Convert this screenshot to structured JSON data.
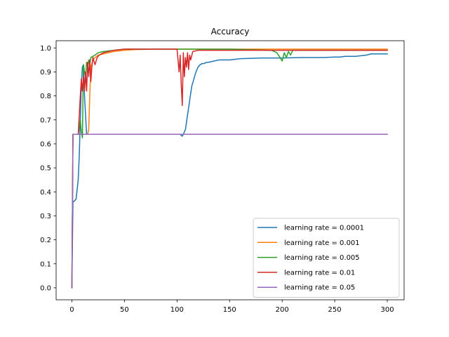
{
  "chart_data": {
    "type": "line",
    "title": "Accuracy",
    "xlabel": "",
    "ylabel": "",
    "xlim": [
      -15,
      316
    ],
    "ylim": [
      -0.05,
      1.03
    ],
    "xticks": [
      0,
      50,
      100,
      150,
      200,
      250,
      300
    ],
    "xtick_labels": [
      "0",
      "50",
      "100",
      "150",
      "200",
      "250",
      "300"
    ],
    "yticks": [
      0.0,
      0.1,
      0.2,
      0.3,
      0.4,
      0.5,
      0.6,
      0.7,
      0.8,
      0.9,
      1.0
    ],
    "ytick_labels": [
      "0.0",
      "0.1",
      "0.2",
      "0.3",
      "0.4",
      "0.5",
      "0.6",
      "0.7",
      "0.8",
      "0.9",
      "1.0"
    ],
    "grid": false,
    "legend_position": "lower-right",
    "series": [
      {
        "name": "learning rate = 0.0001",
        "color": "#1f77b4",
        "x": [
          0,
          1,
          2,
          4,
          6,
          7,
          8,
          9,
          10,
          11,
          12,
          14,
          16,
          18,
          20,
          30,
          50,
          100,
          103,
          104,
          105,
          106,
          108,
          110,
          112,
          114,
          116,
          118,
          120,
          122,
          124,
          126,
          128,
          130,
          135,
          140,
          150,
          160,
          180,
          200,
          220,
          240,
          250,
          255,
          260,
          270,
          280,
          285,
          290,
          300
        ],
        "y": [
          0.0,
          0.36,
          0.36,
          0.37,
          0.45,
          0.55,
          0.7,
          0.85,
          0.92,
          0.93,
          0.8,
          0.64,
          0.64,
          0.64,
          0.64,
          0.64,
          0.64,
          0.64,
          0.64,
          0.635,
          0.632,
          0.64,
          0.66,
          0.72,
          0.78,
          0.84,
          0.87,
          0.9,
          0.92,
          0.93,
          0.935,
          0.935,
          0.94,
          0.94,
          0.945,
          0.95,
          0.95,
          0.955,
          0.958,
          0.958,
          0.96,
          0.96,
          0.962,
          0.962,
          0.965,
          0.965,
          0.97,
          0.975,
          0.975,
          0.975
        ]
      },
      {
        "name": "learning rate = 0.001",
        "color": "#ff7f0e",
        "x": [
          0,
          1,
          2,
          10,
          15,
          16,
          17,
          18,
          20,
          22,
          25,
          30,
          35,
          40,
          50,
          60,
          80,
          100,
          150,
          200,
          250,
          300
        ],
        "y": [
          0.0,
          0.64,
          0.64,
          0.64,
          0.64,
          0.66,
          0.8,
          0.92,
          0.95,
          0.96,
          0.97,
          0.975,
          0.98,
          0.985,
          0.99,
          0.993,
          0.995,
          0.995,
          0.995,
          0.995,
          0.995,
          0.995
        ]
      },
      {
        "name": "learning rate = 0.005",
        "color": "#2ca02c",
        "x": [
          0,
          1,
          2,
          6,
          8,
          9,
          10,
          11,
          12,
          13,
          14,
          15,
          16,
          17,
          18,
          20,
          22,
          25,
          30,
          40,
          50,
          100,
          150,
          190,
          195,
          198,
          200,
          202,
          204,
          206,
          208,
          210,
          250,
          300
        ],
        "y": [
          0.0,
          0.64,
          0.64,
          0.64,
          0.7,
          0.65,
          0.625,
          0.93,
          0.9,
          0.88,
          0.94,
          0.92,
          0.95,
          0.93,
          0.96,
          0.965,
          0.97,
          0.98,
          0.985,
          0.99,
          0.995,
          0.995,
          0.995,
          0.99,
          0.98,
          0.96,
          0.945,
          0.98,
          0.96,
          0.985,
          0.97,
          0.99,
          0.99,
          0.99
        ]
      },
      {
        "name": "learning rate = 0.01",
        "color": "#d62728",
        "x": [
          0,
          1,
          2,
          6,
          8,
          9,
          10,
          11,
          12,
          13,
          14,
          15,
          16,
          17,
          18,
          19,
          20,
          22,
          24,
          26,
          30,
          40,
          50,
          100,
          102,
          103,
          104,
          105,
          106,
          107,
          108,
          109,
          110,
          111,
          112,
          113,
          115,
          120,
          150,
          200,
          250,
          300
        ],
        "y": [
          0.0,
          0.64,
          0.64,
          0.64,
          0.8,
          0.87,
          0.82,
          0.88,
          0.82,
          0.9,
          0.82,
          0.94,
          0.88,
          0.95,
          0.86,
          0.92,
          0.96,
          0.93,
          0.96,
          0.97,
          0.98,
          0.99,
          0.995,
          0.995,
          0.9,
          0.97,
          0.85,
          0.76,
          0.98,
          0.88,
          0.96,
          0.92,
          0.98,
          0.91,
          0.97,
          0.95,
          0.985,
          0.99,
          0.99,
          0.99,
          0.99,
          0.99
        ]
      },
      {
        "name": "learning rate = 0.05",
        "color": "#9467bd",
        "x": [
          0,
          1,
          2,
          300
        ],
        "y": [
          0.0,
          0.64,
          0.64,
          0.64
        ]
      }
    ]
  }
}
